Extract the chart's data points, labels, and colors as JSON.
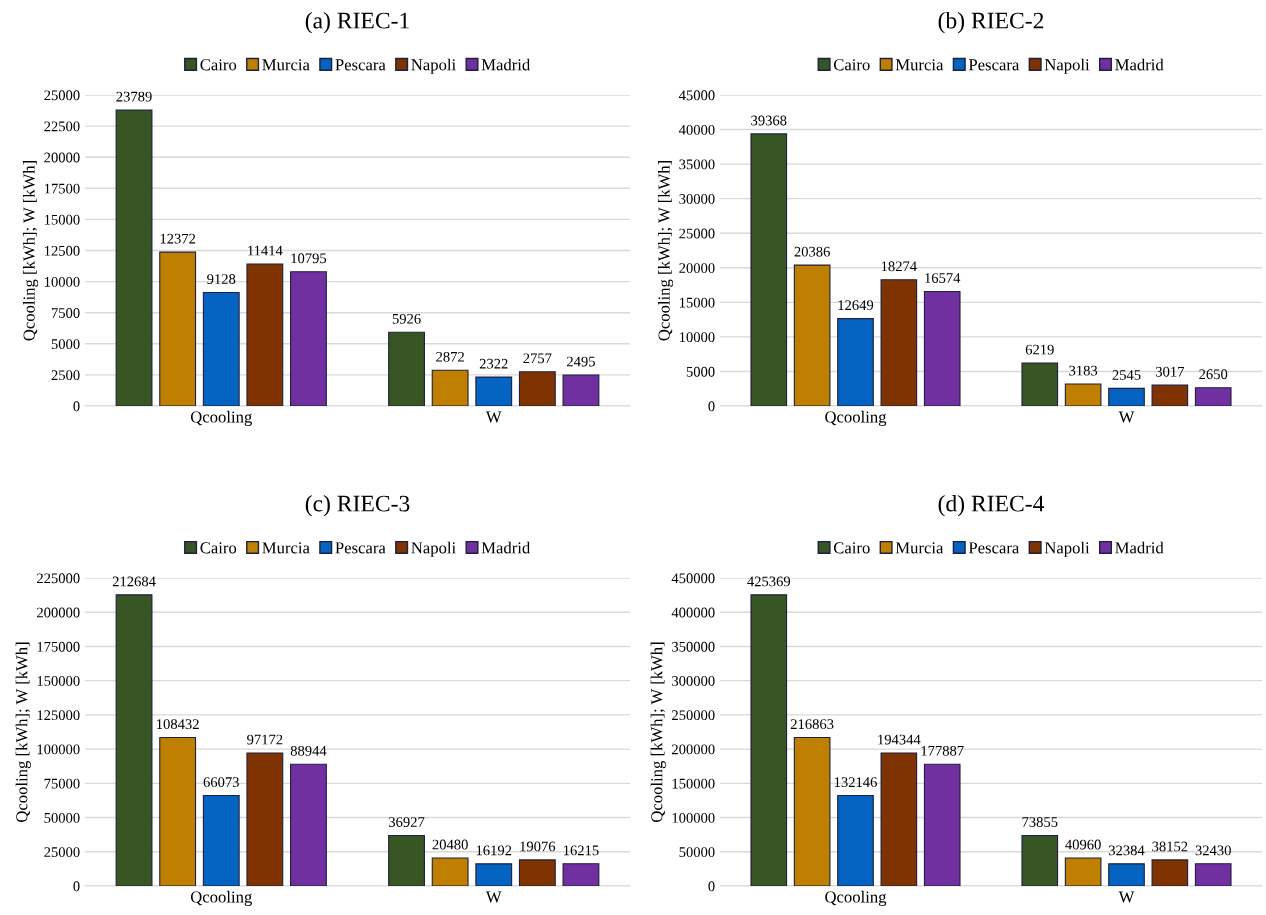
{
  "chart_data": [
    {
      "type": "bar",
      "title": "(a) RIEC-1",
      "ylabel": "Qcooling [kWh]; W [kWh]",
      "categories": [
        "Qcooling",
        "W"
      ],
      "ylim": [
        0,
        25000
      ],
      "yticks": [
        0,
        2500,
        5000,
        7500,
        10000,
        12500,
        15000,
        17500,
        20000,
        22500,
        25000
      ],
      "grid": "y",
      "legend": "top",
      "data_labels": true,
      "series": [
        {
          "name": "Cairo",
          "color": "#375623",
          "values": [
            23789,
            5926
          ]
        },
        {
          "name": "Murcia",
          "color": "#bf7f00",
          "values": [
            12372,
            2872
          ]
        },
        {
          "name": "Pescara",
          "color": "#0563c1",
          "values": [
            9128,
            2322
          ]
        },
        {
          "name": "Napoli",
          "color": "#7f3300",
          "values": [
            11414,
            2757
          ]
        },
        {
          "name": "Madrid",
          "color": "#7030a0",
          "values": [
            10795,
            2495
          ]
        }
      ]
    },
    {
      "type": "bar",
      "title": "(b) RIEC-2",
      "ylabel": "Qcooling [kWh]; W [kWh]",
      "categories": [
        "Qcooling",
        "W"
      ],
      "ylim": [
        0,
        45000
      ],
      "yticks": [
        0,
        5000,
        10000,
        15000,
        20000,
        25000,
        30000,
        35000,
        40000,
        45000
      ],
      "grid": "y",
      "legend": "top",
      "data_labels": true,
      "series": [
        {
          "name": "Cairo",
          "color": "#375623",
          "values": [
            39368,
            6219
          ]
        },
        {
          "name": "Murcia",
          "color": "#bf7f00",
          "values": [
            20386,
            3183
          ]
        },
        {
          "name": "Pescara",
          "color": "#0563c1",
          "values": [
            12649,
            2545
          ]
        },
        {
          "name": "Napoli",
          "color": "#7f3300",
          "values": [
            18274,
            3017
          ]
        },
        {
          "name": "Madrid",
          "color": "#7030a0",
          "values": [
            16574,
            2650
          ]
        }
      ]
    },
    {
      "type": "bar",
      "title": "(c) RIEC-3",
      "ylabel": "Qcooling [kWh]; W [kWh]",
      "categories": [
        "Qcooling",
        "W"
      ],
      "ylim": [
        0,
        225000
      ],
      "yticks": [
        0,
        25000,
        50000,
        75000,
        100000,
        125000,
        150000,
        175000,
        200000,
        225000
      ],
      "grid": "y",
      "legend": "top",
      "data_labels": true,
      "series": [
        {
          "name": "Cairo",
          "color": "#375623",
          "values": [
            212684,
            36927
          ]
        },
        {
          "name": "Murcia",
          "color": "#bf7f00",
          "values": [
            108432,
            20480
          ]
        },
        {
          "name": "Pescara",
          "color": "#0563c1",
          "values": [
            66073,
            16192
          ]
        },
        {
          "name": "Napoli",
          "color": "#7f3300",
          "values": [
            97172,
            19076
          ]
        },
        {
          "name": "Madrid",
          "color": "#7030a0",
          "values": [
            88944,
            16215
          ]
        }
      ]
    },
    {
      "type": "bar",
      "title": "(d) RIEC-4",
      "ylabel": "Qcooling [kWh]; W [kWh]",
      "categories": [
        "Qcooling",
        "W"
      ],
      "ylim": [
        0,
        450000
      ],
      "yticks": [
        0,
        50000,
        100000,
        150000,
        200000,
        250000,
        300000,
        350000,
        400000,
        450000
      ],
      "grid": "y",
      "legend": "top",
      "data_labels": true,
      "series": [
        {
          "name": "Cairo",
          "color": "#375623",
          "values": [
            425369,
            73855
          ]
        },
        {
          "name": "Murcia",
          "color": "#bf7f00",
          "values": [
            216863,
            40960
          ]
        },
        {
          "name": "Pescara",
          "color": "#0563c1",
          "values": [
            132146,
            32384
          ]
        },
        {
          "name": "Napoli",
          "color": "#7f3300",
          "values": [
            194344,
            38152
          ]
        },
        {
          "name": "Madrid",
          "color": "#7030a0",
          "values": [
            177887,
            32430
          ]
        }
      ]
    }
  ]
}
